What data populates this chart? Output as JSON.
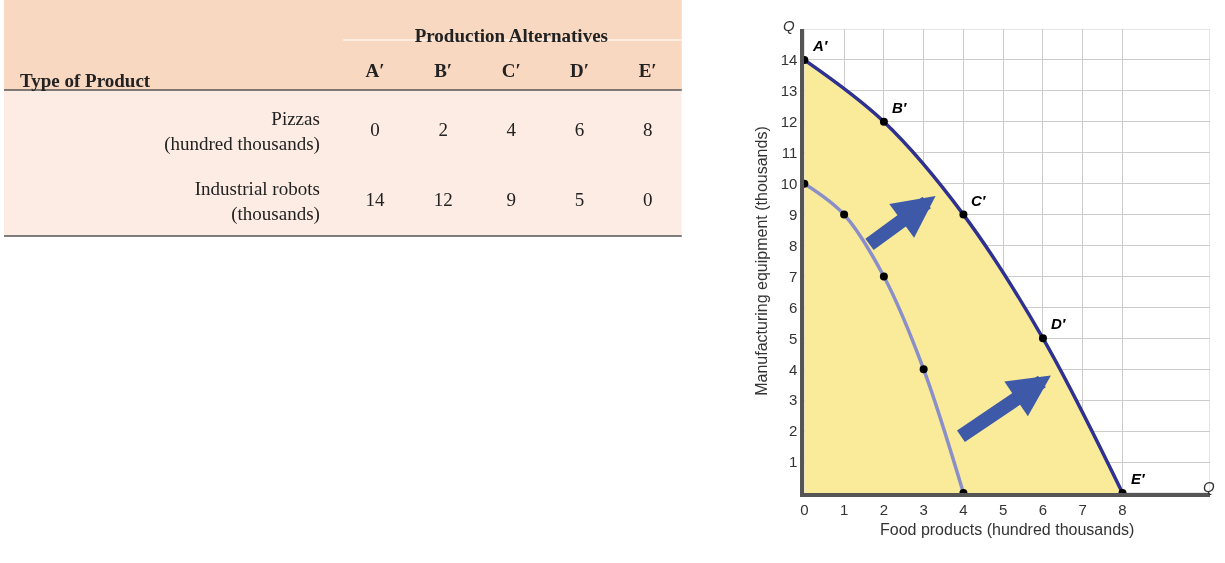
{
  "chart_data": [
    {
      "type": "heatmap",
      "xlabel": "Production Alternatives",
      "ylabel": "Type of Product",
      "categories": [
        "A′",
        "B′",
        "C′",
        "D′",
        "E′"
      ],
      "y_categories": [
        "Pizzas\n(hundred thousands)",
        "Industrial robots\n(thousands)"
      ],
      "cells": [
        [
          0,
          2,
          4,
          6,
          8
        ],
        [
          14,
          12,
          9,
          5,
          0
        ]
      ],
      "data_labels": true,
      "colors": [
        "#f9d8c2",
        "#fdece3"
      ]
    },
    {
      "type": "line",
      "xlabel": "Food products (hundred thousands)",
      "ylabel": "Manufacturing equipment (thousands)",
      "x": [
        0,
        2,
        4,
        6,
        8
      ],
      "series": [
        {
          "color": "#2e3192",
          "values": [
            14,
            12,
            9,
            5,
            0
          ]
        },
        {
          "color": "#8b8fc9",
          "x": [
            0,
            1,
            2,
            3,
            4
          ],
          "values": [
            10,
            9,
            7,
            4,
            0
          ]
        }
      ],
      "xlim": [
        0,
        10.2
      ],
      "ylim": [
        0,
        15
      ],
      "xticks": [
        0,
        1,
        2,
        3,
        4,
        5,
        6,
        7,
        8
      ],
      "yticks": [
        1,
        2,
        3,
        4,
        5,
        6,
        7,
        8,
        9,
        10,
        11,
        12,
        13,
        14
      ],
      "grid": true,
      "marker": "circle",
      "annotations": [
        {
          "text": "A′",
          "x": 0,
          "y": 14
        },
        {
          "text": "B′",
          "x": 2,
          "y": 12
        },
        {
          "text": "C′",
          "x": 4,
          "y": 9
        },
        {
          "text": "D′",
          "x": 6,
          "y": 5
        },
        {
          "text": "E′",
          "x": 8,
          "y": 0
        },
        "Q",
        "Q"
      ]
    }
  ]
}
